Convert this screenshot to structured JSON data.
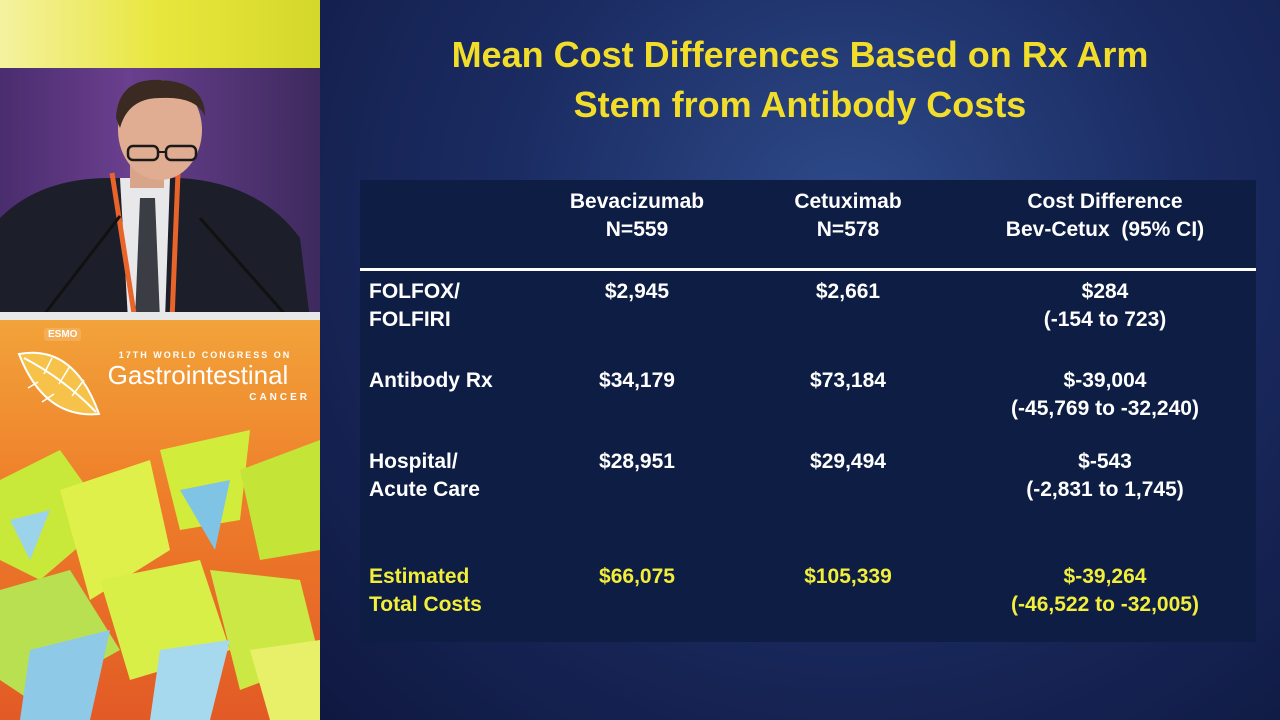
{
  "banner": {
    "org_logo": "ESMO",
    "subtitle": "17TH WORLD CONGRESS ON",
    "title": "Gastrointestinal",
    "cancer": "CANCER"
  },
  "slide": {
    "title_line1": "Mean Cost Differences Based on Rx Arm",
    "title_line2": "Stem from Antibody Costs"
  },
  "table": {
    "headers": [
      {
        "line1": "Bevacizumab",
        "line2": "N=559"
      },
      {
        "line1": "Cetuximab",
        "line2": "N=578"
      },
      {
        "line1": "Cost Difference",
        "line2": "Bev-Cetux  (95% CI)"
      }
    ],
    "rows": [
      {
        "label1": "FOLFOX/",
        "label2": "FOLFIRI",
        "bev": "$2,945",
        "cet": "$2,661",
        "diff1": "$284",
        "diff2": "(-154 to 723)"
      },
      {
        "label1": "Antibody Rx",
        "label2": "",
        "bev": "$34,179",
        "cet": "$73,184",
        "diff1": "$-39,004",
        "diff2": "(-45,769 to -32,240)"
      },
      {
        "label1": "Hospital/",
        "label2": "Acute Care",
        "bev": "$28,951",
        "cet": "$29,494",
        "diff1": "$-543",
        "diff2": "(-2,831 to 1,745)"
      },
      {
        "label1": "Estimated",
        "label2": "Total Costs",
        "bev": "$66,075",
        "cet": "$105,339",
        "diff1": "$-39,264",
        "diff2": "(-46,522 to -32,005)"
      }
    ]
  },
  "colors": {
    "title": "#f2dd2a",
    "highlight": "#f2ee3a",
    "table_bg": "#0e1d44"
  }
}
